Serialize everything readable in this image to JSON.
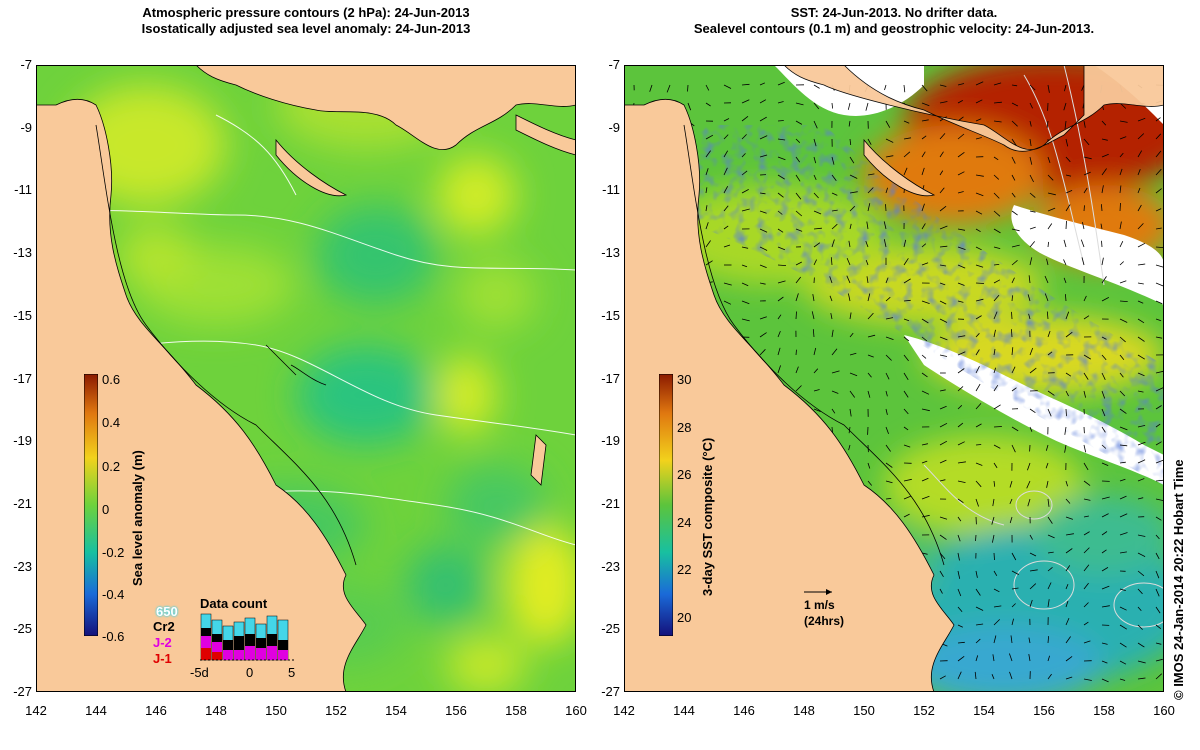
{
  "left_panel": {
    "title_line1": "Atmospheric pressure contours (2 hPa): 24-Jun-2013",
    "title_line2": "Isostatically adjusted sea level anomaly: 24-Jun-2013",
    "colorbar": {
      "label": "Sea level anomaly (m)",
      "ticks": [
        "0.6",
        "0.4",
        "0.2",
        "0",
        "-0.2",
        "-0.4",
        "-0.6"
      ],
      "range": [
        -0.6,
        0.6
      ]
    },
    "legend": {
      "sats": [
        {
          "name": "650",
          "color": "#44d6e8"
        },
        {
          "name": "Cr2",
          "color": "#000000"
        },
        {
          "name": "J-2",
          "color": "#e000e0"
        },
        {
          "name": "J-1",
          "color": "#e00000"
        }
      ],
      "data_count_title": "Data count",
      "x_ticks": [
        "-5d",
        "0",
        "5"
      ]
    }
  },
  "right_panel": {
    "title_line1": "SST: 24-Jun-2013. No drifter data.",
    "title_line2": "Sealevel contours (0.1 m) and geostrophic velocity: 24-Jun-2013.",
    "colorbar": {
      "label": "3-day SST composite (°C)",
      "ticks": [
        "30",
        "28",
        "26",
        "24",
        "22",
        "20"
      ],
      "range": [
        19,
        30
      ]
    },
    "scale_arrow_label1": "1 m/s",
    "scale_arrow_label2": "(24hrs)"
  },
  "axes": {
    "lat_ticks": [
      "-7",
      "-9",
      "-11",
      "-13",
      "-15",
      "-17",
      "-19",
      "-21",
      "-23",
      "-25",
      "-27"
    ],
    "lon_ticks": [
      "142",
      "144",
      "146",
      "148",
      "150",
      "152",
      "154",
      "156",
      "158",
      "160"
    ],
    "lat_range": [
      -27,
      -7
    ],
    "lon_range": [
      142,
      160
    ]
  },
  "credit": "© IMOS 24-Jan-2014 20:22 Hobart Time",
  "colors": {
    "land": "#f9c99a",
    "sla_green": "#6ed23c",
    "sst_green": "#5cc43c",
    "sst_orange": "#e07a10",
    "sst_red": "#b42400",
    "sst_blue": "#1630b0"
  }
}
